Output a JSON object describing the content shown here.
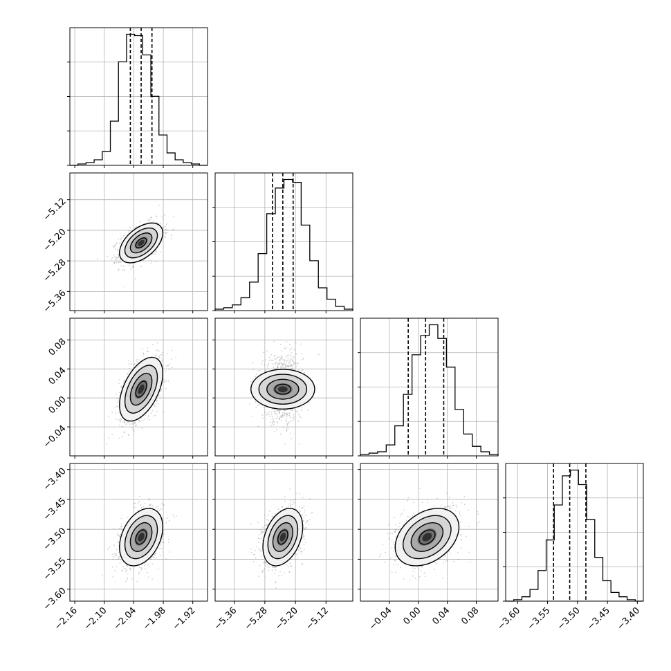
{
  "chart_data": {
    "type": "corner",
    "params": [
      {
        "mean": -2.025,
        "sd": 0.022,
        "quantiles": [
          -2.047,
          -2.025,
          -2.003
        ],
        "range": [
          -2.17,
          -1.89
        ],
        "ticks": [
          "−2.16",
          "−2.10",
          "−2.04",
          "−1.98",
          "−1.92"
        ],
        "tick_values": [
          -2.16,
          -2.1,
          -2.04,
          -1.98,
          -1.92
        ],
        "hist": [
          0,
          1,
          2,
          4,
          10,
          32,
          75,
          95,
          94,
          80,
          50,
          22,
          9,
          4,
          2,
          1,
          0
        ]
      },
      {
        "mean": -5.233,
        "sd": 0.026,
        "quantiles": [
          -5.26,
          -5.233,
          -5.206
        ],
        "range": [
          -5.41,
          -5.05
        ],
        "ticks": [
          "−5.36",
          "−5.28",
          "−5.20",
          "−5.12"
        ],
        "tick_values": [
          -5.36,
          -5.28,
          -5.2,
          -5.12
        ],
        "hist": [
          1,
          2,
          4,
          9,
          20,
          40,
          68,
          86,
          92,
          90,
          60,
          35,
          16,
          8,
          3,
          1
        ]
      },
      {
        "mean": 0.012,
        "sd": 0.022,
        "quantiles": [
          -0.014,
          0.01,
          0.035
        ],
        "range": [
          -0.08,
          0.11
        ],
        "ticks": [
          "−0.04",
          "0.00",
          "0.04",
          "0.08"
        ],
        "tick_values": [
          -0.04,
          0.0,
          0.04,
          0.08
        ],
        "hist": [
          1,
          2,
          3,
          8,
          22,
          45,
          74,
          88,
          96,
          86,
          65,
          34,
          16,
          7,
          3,
          1
        ]
      },
      {
        "mean": -3.513,
        "sd": 0.024,
        "quantiles": [
          -3.54,
          -3.513,
          -3.486
        ],
        "range": [
          -3.62,
          -3.39
        ],
        "ticks": [
          "−3.60",
          "−3.55",
          "−3.50",
          "−3.45",
          "−3.40"
        ],
        "tick_values": [
          -3.6,
          -3.55,
          -3.5,
          -3.45,
          -3.4
        ],
        "hist": [
          0,
          1,
          3,
          8,
          21,
          42,
          66,
          86,
          90,
          80,
          56,
          30,
          14,
          6,
          3,
          1,
          0
        ]
      }
    ],
    "correlations": [
      [
        1.0,
        0.5,
        0.5,
        0.35
      ],
      [
        0.5,
        1.0,
        0.0,
        0.35
      ],
      [
        0.5,
        0.0,
        1.0,
        0.35
      ],
      [
        0.35,
        0.35,
        0.35,
        1.0
      ]
    ],
    "contour_levels_sigma": [
      0.5,
      1.0,
      1.5,
      2.0
    ],
    "title": "",
    "grid": true
  }
}
